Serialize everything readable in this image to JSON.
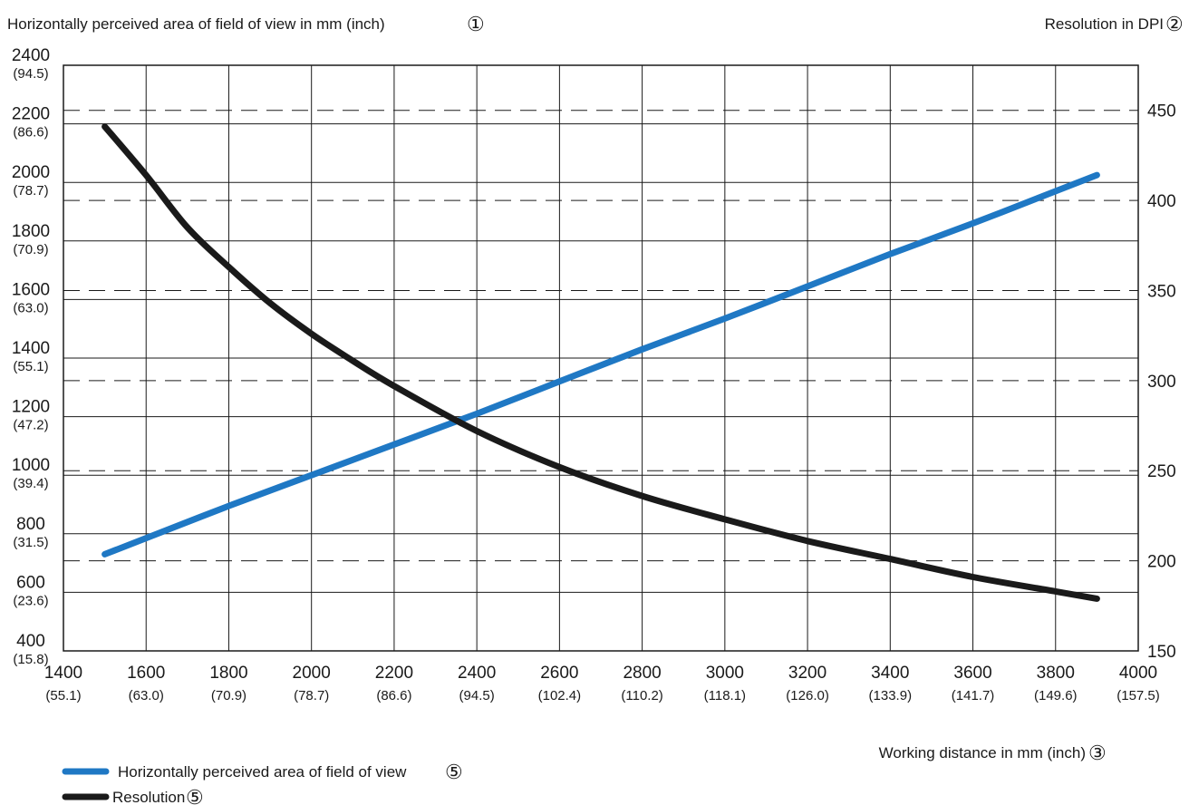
{
  "chart_data": {
    "type": "line",
    "y_left_title": "Horizontally perceived area of field of view in mm (inch)",
    "y_left_marker": "①",
    "y_right_title": "Resolution in DPI",
    "y_right_marker": "②",
    "x_title": "Working distance in mm (inch)",
    "x_marker": "③",
    "x_range": [
      1400,
      4000
    ],
    "y_left_range": [
      400,
      2400
    ],
    "y_right_range": [
      150,
      475
    ],
    "x_ticks": [
      {
        "mm": "1400",
        "inch": "(55.1)"
      },
      {
        "mm": "1600",
        "inch": "(63.0)"
      },
      {
        "mm": "1800",
        "inch": "(70.9)"
      },
      {
        "mm": "2000",
        "inch": "(78.7)"
      },
      {
        "mm": "2200",
        "inch": "(86.6)"
      },
      {
        "mm": "2400",
        "inch": "(94.5)"
      },
      {
        "mm": "2600",
        "inch": "(102.4)"
      },
      {
        "mm": "2800",
        "inch": "(110.2)"
      },
      {
        "mm": "3000",
        "inch": "(118.1)"
      },
      {
        "mm": "3200",
        "inch": "(126.0)"
      },
      {
        "mm": "3400",
        "inch": "(133.9)"
      },
      {
        "mm": "3600",
        "inch": "(141.7)"
      },
      {
        "mm": "3800",
        "inch": "(149.6)"
      },
      {
        "mm": "4000",
        "inch": "(157.5)"
      }
    ],
    "y_left_ticks": [
      {
        "mm": "2400",
        "inch": "(94.5)"
      },
      {
        "mm": "2200",
        "inch": "(86.6)"
      },
      {
        "mm": "2000",
        "inch": "(78.7)"
      },
      {
        "mm": "1800",
        "inch": "(70.9)"
      },
      {
        "mm": "1600",
        "inch": "(63.0)"
      },
      {
        "mm": "1400",
        "inch": "(55.1)"
      },
      {
        "mm": "1200",
        "inch": "(47.2)"
      },
      {
        "mm": "1000",
        "inch": "(39.4)"
      },
      {
        "mm": "800",
        "inch": "(31.5)"
      },
      {
        "mm": "600",
        "inch": "(23.6)"
      },
      {
        "mm": "400",
        "inch": "(15.8)"
      }
    ],
    "y_right_ticks": [
      "450",
      "400",
      "350",
      "300",
      "250",
      "200",
      "150"
    ],
    "series": [
      {
        "name": "Horizontally perceived area of field of view",
        "marker": "⑤",
        "axis": "left",
        "color": "#1f78c4",
        "x": [
          1500,
          1600,
          1800,
          2000,
          2200,
          2400,
          2600,
          2800,
          3000,
          3200,
          3400,
          3600,
          3800,
          3900
        ],
        "y": [
          730,
          785,
          895,
          1000,
          1105,
          1210,
          1320,
          1430,
          1535,
          1645,
          1755,
          1860,
          1970,
          2025
        ]
      },
      {
        "name": "Resolution",
        "marker": "⑤",
        "axis": "right",
        "color": "#1a1a1a",
        "x": [
          1500,
          1600,
          1700,
          1800,
          1900,
          2000,
          2100,
          2200,
          2400,
          2600,
          2800,
          3000,
          3200,
          3400,
          3600,
          3800,
          3900
        ],
        "y": [
          441,
          414,
          385,
          363,
          343,
          326,
          311,
          297,
          272,
          252,
          236,
          223,
          211,
          201,
          191,
          183,
          179
        ]
      }
    ]
  }
}
